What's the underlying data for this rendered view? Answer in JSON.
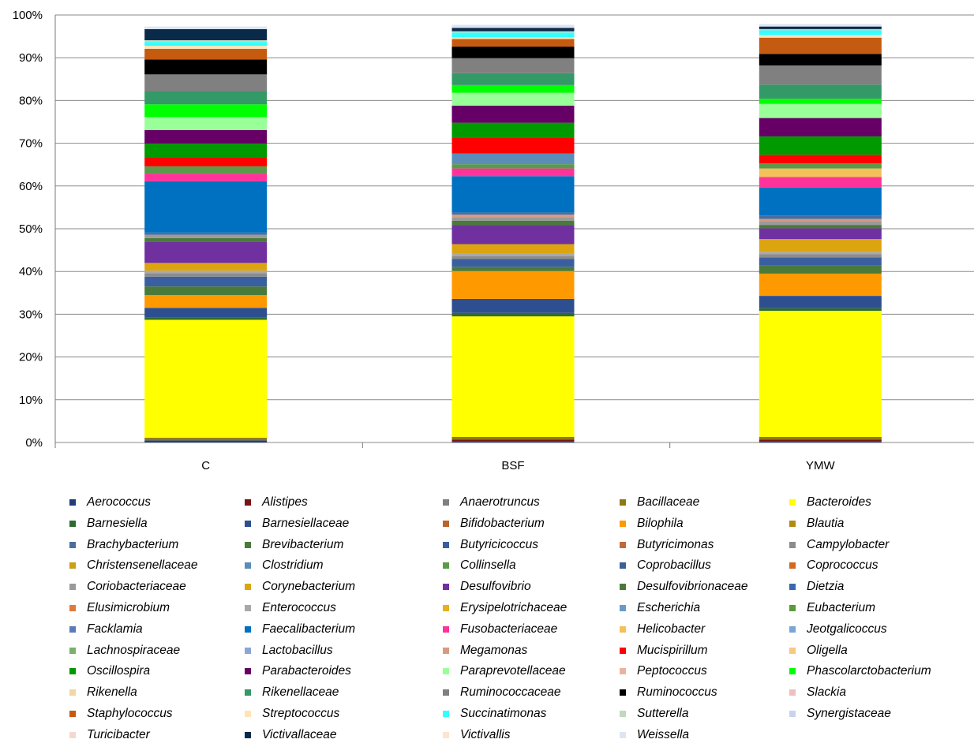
{
  "chart_data": {
    "type": "bar",
    "stacked": true,
    "categories": [
      "C",
      "BSF",
      "YMW"
    ],
    "y_ticks": [
      "0%",
      "10%",
      "20%",
      "30%",
      "40%",
      "50%",
      "60%",
      "70%",
      "80%",
      "90%",
      "100%"
    ],
    "ylim": [
      0,
      100
    ],
    "grid": true,
    "legend_position": "bottom",
    "series": [
      {
        "name": "Aerococcus",
        "color": "#1F3E7A",
        "values": [
          0.5,
          0.3,
          0.3
        ]
      },
      {
        "name": "Alistipes",
        "color": "#7A1414",
        "values": [
          0,
          0.4,
          0.4
        ]
      },
      {
        "name": "Bacillaceae",
        "color": "#8E7A14",
        "values": [
          0.6,
          0.6,
          0.6
        ]
      },
      {
        "name": "Bacteroides",
        "color": "#FFFF00",
        "values": [
          27.6,
          28.2,
          29.5
        ]
      },
      {
        "name": "Barnesiella",
        "color": "#2F6B2F",
        "values": [
          0.5,
          0.8,
          0.6
        ]
      },
      {
        "name": "Barnesiellaceae",
        "color": "#2E4F8F",
        "values": [
          2.3,
          3.3,
          2.9
        ]
      },
      {
        "name": "Bilophila",
        "color": "#FF9900",
        "values": [
          3.0,
          6.5,
          5.2
        ]
      },
      {
        "name": "Brevibacterium",
        "color": "#4A7A3A",
        "values": [
          2.0,
          1.0,
          2.0
        ]
      },
      {
        "name": "Butyricicoccus",
        "color": "#3A5FA0",
        "values": [
          2.3,
          1.8,
          1.8
        ]
      },
      {
        "name": "Campylobacter",
        "color": "#8C8C8C",
        "values": [
          0.8,
          0.7,
          0.7
        ]
      },
      {
        "name": "Enterococcus",
        "color": "#A8A8A8",
        "values": [
          0.6,
          0.6,
          0.6
        ]
      },
      {
        "name": "Corynebacterium",
        "color": "#DCA510",
        "values": [
          1.8,
          2.2,
          3.0
        ]
      },
      {
        "name": "Desulfovibrio",
        "color": "#7030A0",
        "values": [
          5.0,
          4.5,
          2.5
        ]
      },
      {
        "name": "Desulfovibrionaceae",
        "color": "#4A7A3A",
        "values": [
          0.8,
          1.0,
          0.8
        ]
      },
      {
        "name": "Coriobacteriaceae",
        "color": "#9A9A9A",
        "values": [
          0.8,
          0.8,
          0.9
        ]
      },
      {
        "name": "Megamonas",
        "color": "#D89A80",
        "values": [
          0,
          0.6,
          0.5
        ]
      },
      {
        "name": "Brachybacterium",
        "color": "#4A6E9E",
        "values": [
          0.5,
          0.5,
          0.8
        ]
      },
      {
        "name": "Faecalibacterium",
        "color": "#0070C0",
        "values": [
          12.0,
          8.5,
          6.5
        ]
      },
      {
        "name": "Fusobacteriaceae",
        "color": "#FF3399",
        "values": [
          1.8,
          1.8,
          2.5
        ]
      },
      {
        "name": "Helicobacter",
        "color": "#F4C05A",
        "values": [
          0,
          0,
          2.0
        ]
      },
      {
        "name": "Collinsella",
        "color": "#5A9A4A",
        "values": [
          1.7,
          1.0,
          1.2
        ]
      },
      {
        "name": "Clostridium",
        "color": "#5B8DB8",
        "values": [
          0,
          2.5,
          0
        ]
      },
      {
        "name": "Mucispirillum",
        "color": "#FF0000",
        "values": [
          2.0,
          3.7,
          2.0
        ]
      },
      {
        "name": "Oscillospira",
        "color": "#009900",
        "values": [
          3.3,
          3.5,
          4.3
        ]
      },
      {
        "name": "Parabacteroides",
        "color": "#660066",
        "values": [
          3.2,
          4.0,
          4.3
        ]
      },
      {
        "name": "Paraprevotellaceae",
        "color": "#99FF99",
        "values": [
          3.0,
          3.0,
          3.3
        ]
      },
      {
        "name": "Phascolarctobacterium",
        "color": "#00FF00",
        "values": [
          3.0,
          1.8,
          1.2
        ]
      },
      {
        "name": "Rikenellaceae",
        "color": "#339966",
        "values": [
          3.0,
          2.8,
          3.3
        ]
      },
      {
        "name": "Ruminococcaceae",
        "color": "#808080",
        "values": [
          4.0,
          3.5,
          4.5
        ]
      },
      {
        "name": "Ruminococcus",
        "color": "#000000",
        "values": [
          3.5,
          2.7,
          2.7
        ]
      },
      {
        "name": "Staphylococcus",
        "color": "#C55A11",
        "values": [
          2.5,
          1.8,
          3.8
        ]
      },
      {
        "name": "Streptococcus",
        "color": "#FFE4B5",
        "values": [
          0.7,
          0.4,
          0.6
        ]
      },
      {
        "name": "Succinatimonas",
        "color": "#33FFFF",
        "values": [
          0.9,
          1.1,
          1.1
        ]
      },
      {
        "name": "Sutterella",
        "color": "#BFD9BF",
        "values": [
          0.4,
          0.3,
          0.3
        ]
      },
      {
        "name": "Victivallaceae",
        "color": "#0A2A4A",
        "values": [
          2.6,
          0.8,
          0.6
        ]
      },
      {
        "name": "Weissella",
        "color": "#DCE6F1",
        "values": [
          0.6,
          0.7,
          0.6
        ]
      }
    ],
    "legend": [
      {
        "name": "Aerococcus",
        "color": "#1F3E7A"
      },
      {
        "name": "Alistipes",
        "color": "#7A1414"
      },
      {
        "name": "Anaerotruncus",
        "color": "#7F7F7F"
      },
      {
        "name": "Bacillaceae",
        "color": "#8E7A14"
      },
      {
        "name": "Bacteroides",
        "color": "#FFFF00"
      },
      {
        "name": "Barnesiella",
        "color": "#2F6B2F"
      },
      {
        "name": "Barnesiellaceae",
        "color": "#2E4F8F"
      },
      {
        "name": "Bifidobacterium",
        "color": "#B8652E"
      },
      {
        "name": "Bilophila",
        "color": "#FF9900"
      },
      {
        "name": "Blautia",
        "color": "#B08A14"
      },
      {
        "name": "Brachybacterium",
        "color": "#4A6E9E"
      },
      {
        "name": "Brevibacterium",
        "color": "#4A7A3A"
      },
      {
        "name": "Butyricicoccus",
        "color": "#3A5FA0"
      },
      {
        "name": "Butyricimonas",
        "color": "#C06A3A"
      },
      {
        "name": "Campylobacter",
        "color": "#8C8C8C"
      },
      {
        "name": "Christensenellaceae",
        "color": "#C9A017"
      },
      {
        "name": "Clostridium",
        "color": "#5B8DB8"
      },
      {
        "name": "Collinsella",
        "color": "#5A9A4A"
      },
      {
        "name": "Coprobacillus",
        "color": "#3E5E96"
      },
      {
        "name": "Coprococcus",
        "color": "#D2691E"
      },
      {
        "name": "Coriobacteriaceae",
        "color": "#9A9A9A"
      },
      {
        "name": "Corynebacterium",
        "color": "#DCA510"
      },
      {
        "name": "Desulfovibrio",
        "color": "#7030A0"
      },
      {
        "name": "Desulfovibrionaceae",
        "color": "#4A7A3A"
      },
      {
        "name": "Dietzia",
        "color": "#3A68B0"
      },
      {
        "name": "Elusimicrobium",
        "color": "#E07A3A"
      },
      {
        "name": "Enterococcus",
        "color": "#A8A8A8"
      },
      {
        "name": "Erysipelotrichaceae",
        "color": "#E6B022"
      },
      {
        "name": "Escherichia",
        "color": "#6A9ACA"
      },
      {
        "name": "Eubacterium",
        "color": "#5C9A3C"
      },
      {
        "name": "Facklamia",
        "color": "#5A7ABA"
      },
      {
        "name": "Faecalibacterium",
        "color": "#0070C0"
      },
      {
        "name": "Fusobacteriaceae",
        "color": "#FF3399"
      },
      {
        "name": "Helicobacter",
        "color": "#F4C05A"
      },
      {
        "name": "Jeotgalicoccus",
        "color": "#7AA6D4"
      },
      {
        "name": "Lachnospiraceae",
        "color": "#7AB06A"
      },
      {
        "name": "Lactobacillus",
        "color": "#8CA4D8"
      },
      {
        "name": "Megamonas",
        "color": "#D89A80"
      },
      {
        "name": "Mucispirillum",
        "color": "#FF0000"
      },
      {
        "name": "Oligella",
        "color": "#F8C880"
      },
      {
        "name": "Oscillospira",
        "color": "#009900"
      },
      {
        "name": "Parabacteroides",
        "color": "#660066"
      },
      {
        "name": "Paraprevotellaceae",
        "color": "#99FF99"
      },
      {
        "name": "Peptococcus",
        "color": "#E8B4A0"
      },
      {
        "name": "Phascolarctobacterium",
        "color": "#00FF00"
      },
      {
        "name": "Rikenella",
        "color": "#F4D6A0"
      },
      {
        "name": "Rikenellaceae",
        "color": "#339966"
      },
      {
        "name": "Ruminococcaceae",
        "color": "#808080"
      },
      {
        "name": "Ruminococcus",
        "color": "#000000"
      },
      {
        "name": "Slackia",
        "color": "#F0C0C0"
      },
      {
        "name": "Staphylococcus",
        "color": "#C55A11"
      },
      {
        "name": "Streptococcus",
        "color": "#FFE4B5"
      },
      {
        "name": "Succinatimonas",
        "color": "#33FFFF"
      },
      {
        "name": "Sutterella",
        "color": "#BFD9BF"
      },
      {
        "name": "Synergistaceae",
        "color": "#C8D4EC"
      },
      {
        "name": "Turicibacter",
        "color": "#F4D8D0"
      },
      {
        "name": "Victivallaceae",
        "color": "#0A2A4A"
      },
      {
        "name": "Victivallis",
        "color": "#FCE4D0"
      },
      {
        "name": "Weissella",
        "color": "#DCE6F1"
      }
    ]
  }
}
